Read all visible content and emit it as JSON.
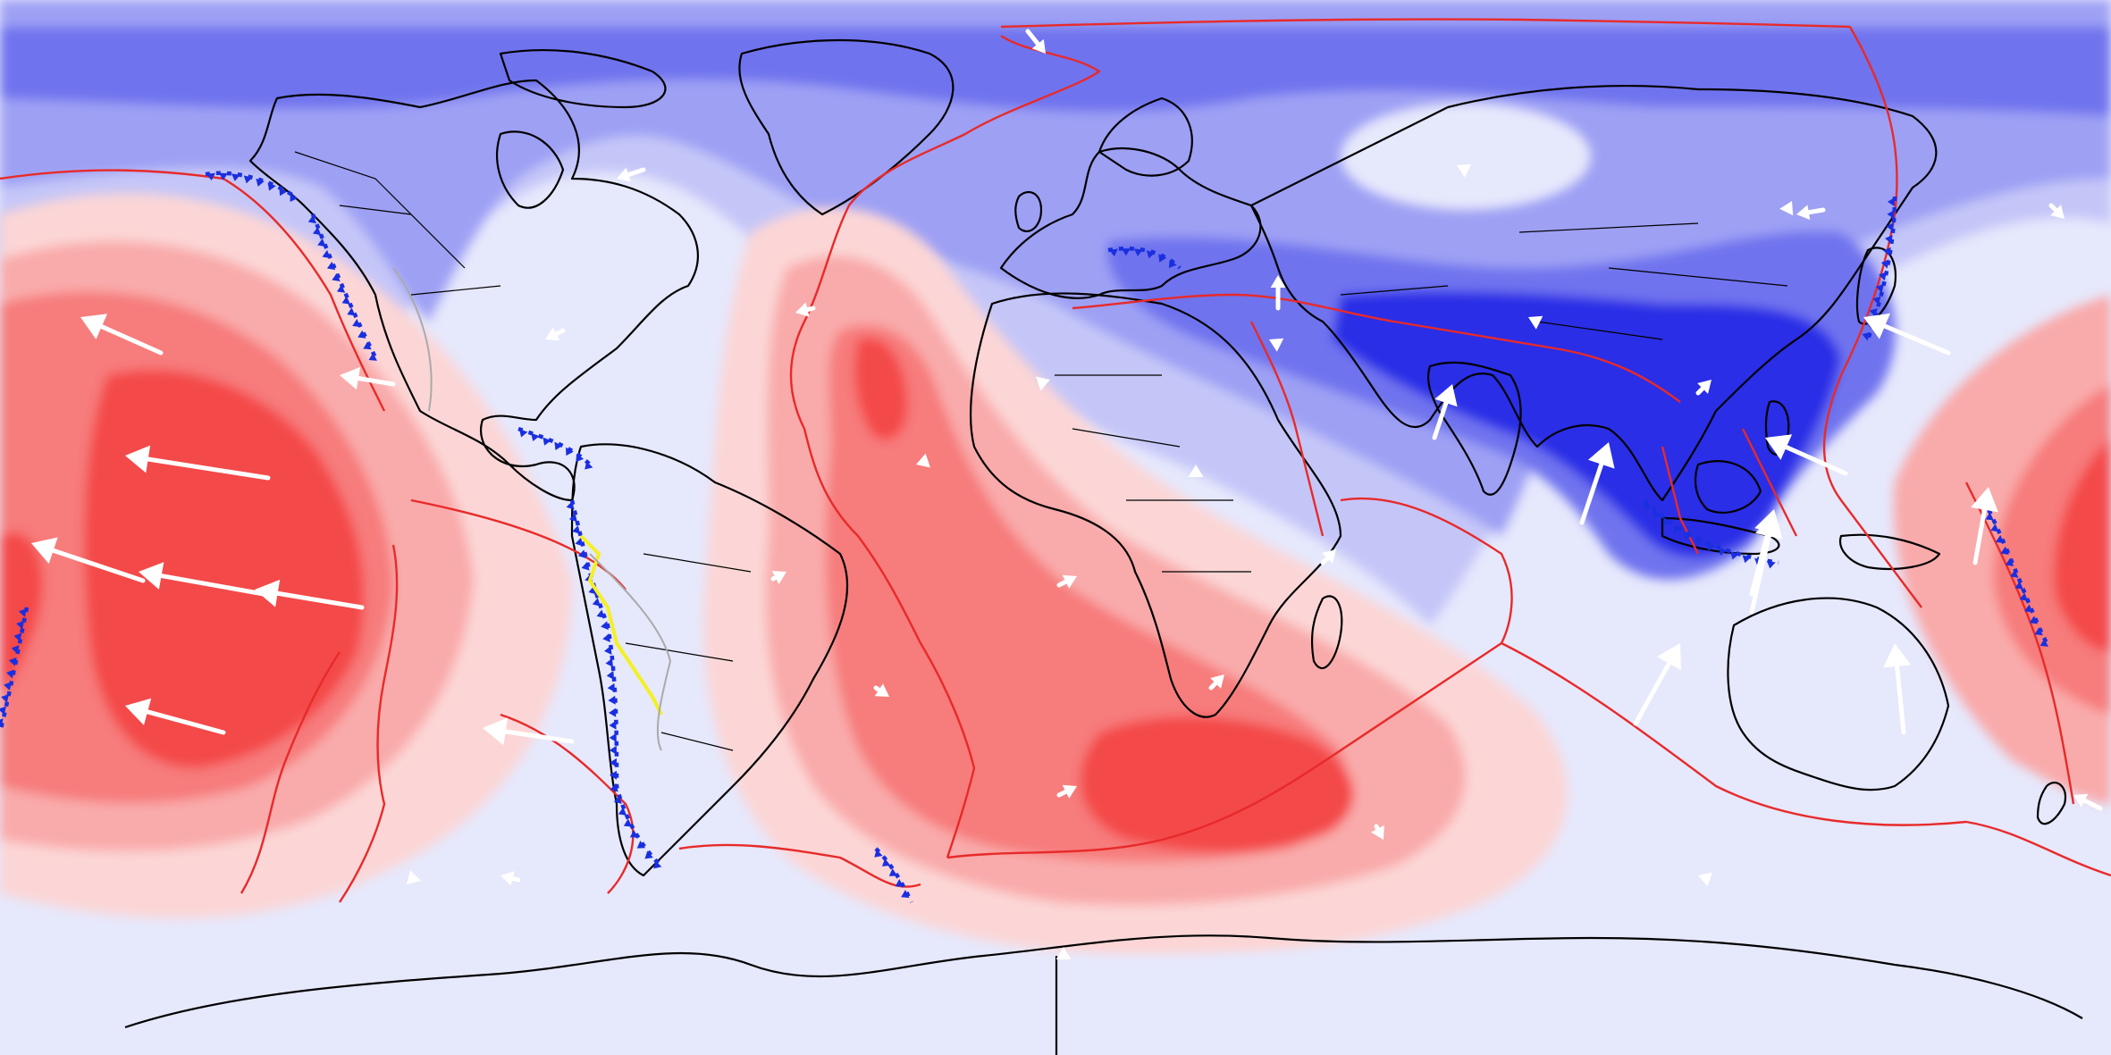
{
  "map": {
    "projection": "equirectangular",
    "colors": {
      "upwelling_strong": "#f44848",
      "upwelling_medium": "#f77c7c",
      "upwelling_weak": "#f9aaaa",
      "upwelling_faint": "#fcd6d6",
      "neutral": "#e6e8fc",
      "downwelling_faint": "#c5c6f8",
      "downwelling_weak": "#9ea0f4",
      "downwelling_medium": "#6f73ee",
      "downwelling_strong": "#2a2ee6",
      "coastline": "#000000",
      "plate_boundary": "#e82a2a",
      "subduction_trench": "#1a2fe0",
      "volcanic_arc": "#f5f020",
      "velocity_arrow": "#ffffff"
    },
    "icons": [
      "velocity-arrow",
      "subduction-triangle"
    ]
  }
}
